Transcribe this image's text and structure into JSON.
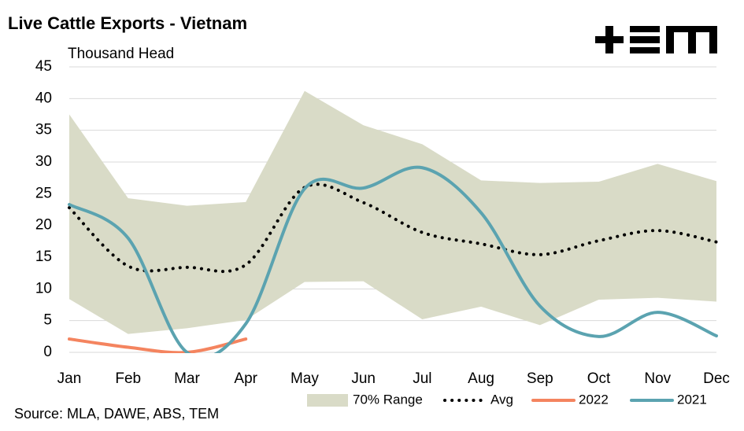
{
  "chart_data": {
    "type": "line",
    "title": "Live Cattle Exports - Vietnam",
    "subtitle": "Thousand Head",
    "source": "Source: MLA, DAWE, ABS, TEM",
    "categories": [
      "Jan",
      "Feb",
      "Mar",
      "Apr",
      "May",
      "Jun",
      "Jul",
      "Aug",
      "Sep",
      "Oct",
      "Nov",
      "Dec"
    ],
    "ylim": [
      0,
      45
    ],
    "yticks": [
      0,
      5,
      10,
      15,
      20,
      25,
      30,
      35,
      40,
      45
    ],
    "grid": true,
    "legend": "bottom",
    "range": {
      "name": "70% Range",
      "color": "#d9dbc7",
      "high": [
        37.5,
        24.3,
        23.1,
        23.7,
        41.2,
        35.8,
        32.8,
        27.1,
        26.7,
        26.9,
        29.7,
        27.0
      ],
      "low": [
        8.4,
        2.9,
        3.8,
        5.1,
        11.1,
        11.2,
        5.2,
        7.2,
        4.3,
        8.3,
        8.6,
        8.0
      ]
    },
    "series": [
      {
        "name": "Avg",
        "color": "#000000",
        "dotted": true,
        "values": [
          22.8,
          13.6,
          13.4,
          13.8,
          26.0,
          23.6,
          18.9,
          17.1,
          15.4,
          17.6,
          19.2,
          17.4
        ]
      },
      {
        "name": "2022",
        "color": "#f4845f",
        "values": [
          2.1,
          0.8,
          0,
          2.1,
          null,
          null,
          null,
          null,
          null,
          null,
          null,
          null
        ]
      },
      {
        "name": "2021",
        "color": "#5ba3b0",
        "values": [
          23.3,
          18.0,
          0,
          4.5,
          25.8,
          25.9,
          29.1,
          22.0,
          7.3,
          2.5,
          6.3,
          2.6
        ]
      }
    ]
  }
}
